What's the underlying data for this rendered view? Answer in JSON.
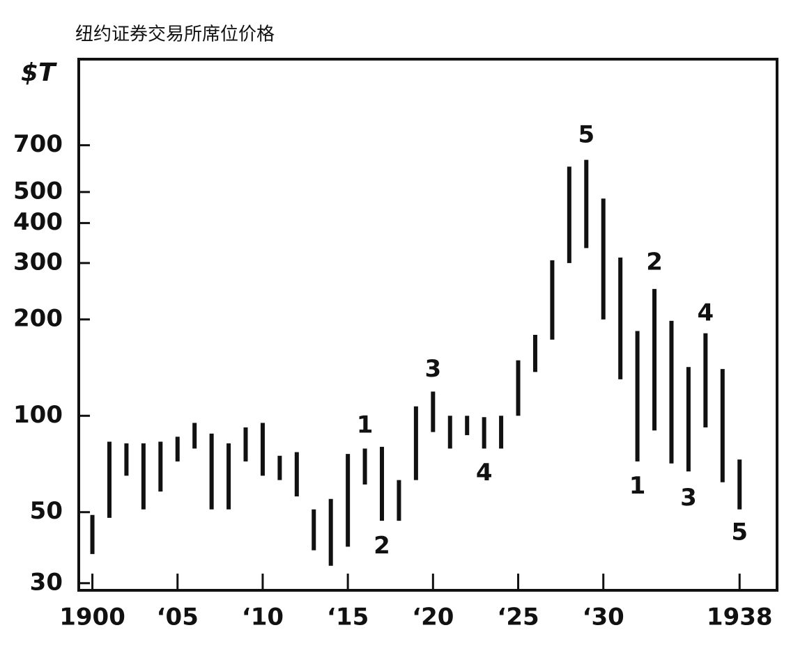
{
  "chart_data": {
    "type": "range",
    "title": "纽约证券交易所席位价格",
    "y_label": "$T",
    "log_y": true,
    "color": "#111111",
    "x": [
      1900,
      1901,
      1902,
      1903,
      1904,
      1905,
      1906,
      1907,
      1908,
      1909,
      1910,
      1911,
      1912,
      1913,
      1914,
      1915,
      1916,
      1917,
      1918,
      1919,
      1920,
      1921,
      1922,
      1923,
      1924,
      1925,
      1926,
      1927,
      1928,
      1929,
      1930,
      1931,
      1932,
      1933,
      1934,
      1935,
      1936,
      1937,
      1938
    ],
    "high": [
      49,
      83,
      82,
      82,
      83,
      86,
      95,
      88,
      82,
      92,
      95,
      75,
      77,
      51,
      55,
      76,
      79,
      80,
      63,
      107,
      119,
      100,
      100,
      99,
      100,
      149,
      179,
      306,
      600,
      630,
      477,
      312,
      184,
      249,
      198,
      142,
      181,
      140,
      73
    ],
    "low": [
      37,
      48,
      65,
      51,
      58,
      72,
      79,
      51,
      51,
      72,
      65,
      63,
      56,
      38,
      34,
      39,
      61,
      47,
      47,
      63,
      89,
      79,
      87,
      79,
      79,
      100,
      137,
      173,
      300,
      334,
      200,
      130,
      72,
      90,
      71,
      67,
      92,
      62,
      51
    ],
    "xlim": [
      1899.2,
      1940.2
    ],
    "xticks": [
      1900,
      {
        "value": 1905,
        "label": "‘05"
      },
      {
        "value": 1910,
        "label": "‘10"
      },
      {
        "value": 1915,
        "label": "‘15"
      },
      {
        "value": 1920,
        "label": "‘20"
      },
      {
        "value": 1925,
        "label": "‘25"
      },
      {
        "value": 1930,
        "label": "‘30"
      },
      1938
    ],
    "ylim": [
      28.5,
      1300
    ],
    "yticks": [
      30,
      50,
      100,
      200,
      300,
      400,
      500,
      700
    ],
    "annotations": [
      {
        "text": "1",
        "x": 1916,
        "y": 93
      },
      {
        "text": "2",
        "x": 1917,
        "y": 39
      },
      {
        "text": "3",
        "x": 1920,
        "y": 139
      },
      {
        "text": "4",
        "x": 1923,
        "y": 66
      },
      {
        "text": "5",
        "x": 1929,
        "y": 750
      },
      {
        "text": "1",
        "x": 1932,
        "y": 60
      },
      {
        "text": "2",
        "x": 1933,
        "y": 300
      },
      {
        "text": "3",
        "x": 1935,
        "y": 55
      },
      {
        "text": "4",
        "x": 1936,
        "y": 208
      },
      {
        "text": "5",
        "x": 1938,
        "y": 43
      }
    ]
  }
}
